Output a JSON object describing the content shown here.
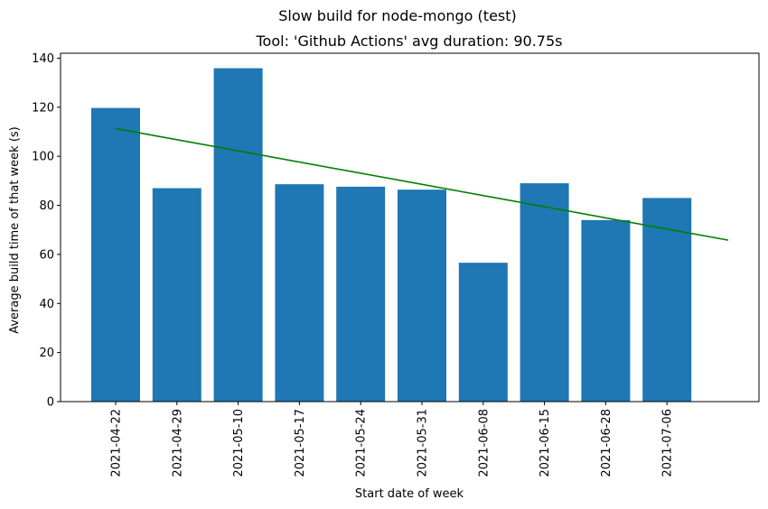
{
  "suptitle": "Slow build for node-mongo (test)",
  "chart_data": {
    "type": "bar",
    "title": "Tool: 'Github Actions' avg duration: 90.75s",
    "xlabel": "Start date of week",
    "ylabel": "Average build time of that week (s)",
    "categories": [
      "2021-04-22",
      "2021-04-29",
      "2021-05-10",
      "2021-05-17",
      "2021-05-24",
      "2021-05-31",
      "2021-06-08",
      "2021-06-15",
      "2021-06-28",
      "2021-07-06"
    ],
    "values": [
      119.7,
      87.0,
      135.9,
      88.6,
      87.6,
      86.4,
      56.6,
      89.0,
      74.0,
      83.0
    ],
    "ylim": [
      0,
      142
    ],
    "yticks": [
      0,
      20,
      40,
      60,
      80,
      100,
      120,
      140
    ],
    "bar_color": "#1f77b4",
    "trend": {
      "color": "#008000",
      "x_start": 0,
      "x_end": 10,
      "y_start": 111.3,
      "y_end": 65.8
    },
    "grid": false,
    "legend": "none"
  }
}
